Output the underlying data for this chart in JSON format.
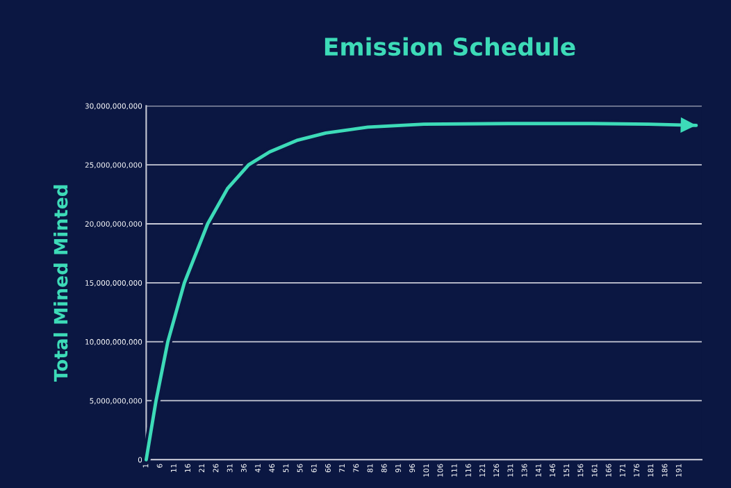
{
  "chart_data": {
    "type": "line",
    "title": "Emission Schedule",
    "ylabel": "Total Mined Minted",
    "series": [
      {
        "color": "#3ddbb8",
        "x": [
          1,
          4.5,
          8.7,
          14.6,
          22.9,
          30,
          37.5,
          45,
          55,
          65,
          80,
          100,
          130,
          160,
          180,
          197
        ],
        "values": [
          0,
          5000000000,
          10000000000,
          15000000000,
          20000000000,
          23000000000,
          25000000000,
          26100000000,
          27100000000,
          27700000000,
          28200000000,
          28450000000,
          28500000000,
          28500000000,
          28450000000,
          28350000000
        ]
      }
    ],
    "xlim": [
      1,
      199
    ],
    "xticks": [
      1,
      6,
      11,
      16,
      21,
      26,
      31,
      36,
      41,
      46,
      51,
      56,
      61,
      66,
      71,
      76,
      81,
      86,
      91,
      96,
      101,
      106,
      111,
      116,
      121,
      126,
      131,
      136,
      141,
      146,
      151,
      156,
      161,
      166,
      171,
      176,
      181,
      186,
      191
    ],
    "ylim": [
      0,
      30000000000
    ],
    "yticks": [
      0,
      {
        "value": 5000000000,
        "label": "5,000,000,000"
      },
      {
        "value": 10000000000,
        "label": "10,000,000,000"
      },
      {
        "value": 15000000000,
        "label": "15,000,000,000"
      },
      {
        "value": 20000000000,
        "label": "20,000,000,000"
      },
      {
        "value": 25000000000,
        "label": "25,000,000,000"
      },
      {
        "value": 30000000000,
        "label": "30,000,000,000"
      }
    ],
    "grid": "y",
    "marker": "none",
    "line_style": "solid",
    "legend": false
  }
}
